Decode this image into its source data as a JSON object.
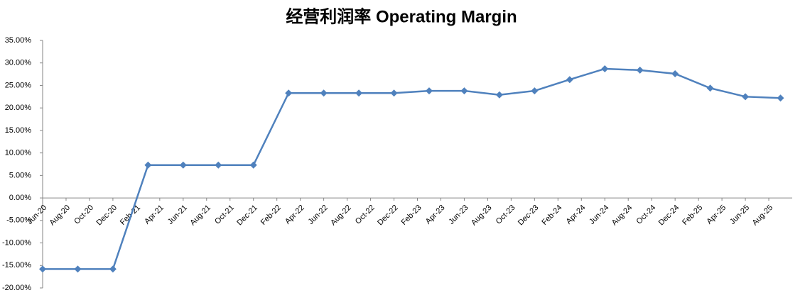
{
  "chart_data": {
    "type": "line",
    "title": "经营利润率 Operating Margin",
    "xticks": [
      "Jun-20",
      "Aug-20",
      "Oct-20",
      "Dec-20",
      "Feb-21",
      "Apr-21",
      "Jun-21",
      "Aug-21",
      "Oct-21",
      "Dec-21",
      "Feb-22",
      "Apr-22",
      "Jun-22",
      "Aug-22",
      "Oct-22",
      "Dec-22",
      "Feb-23",
      "Apr-23",
      "Jun-23",
      "Aug-23",
      "Oct-23",
      "Dec-23",
      "Feb-24",
      "Apr-24",
      "Jun-24",
      "Aug-24",
      "Oct-24",
      "Dec-24",
      "Feb-25",
      "Apr-25",
      "Jun-25",
      "Aug-25"
    ],
    "xlim": [
      "Jun-20",
      "Oct-25"
    ],
    "x": [
      "Jun-20",
      "Sep-20",
      "Dec-20",
      "Mar-21",
      "Jun-21",
      "Sep-21",
      "Dec-21",
      "Mar-22",
      "Jun-22",
      "Sep-22",
      "Dec-22",
      "Mar-23",
      "Jun-23",
      "Sep-23",
      "Dec-23",
      "Mar-24",
      "Jun-24",
      "Sep-24",
      "Dec-24",
      "Mar-25",
      "Jun-25",
      "Sep-25"
    ],
    "series": [
      {
        "color": "#4f81bd",
        "values": [
          -15.8,
          -15.8,
          -15.8,
          7.3,
          7.3,
          7.3,
          7.3,
          23.3,
          23.3,
          23.3,
          23.3,
          23.8,
          23.8,
          22.9,
          23.8,
          26.3,
          28.7,
          28.4,
          27.6,
          24.4,
          22.5,
          22.2
        ]
      }
    ],
    "ylim": [
      -20,
      35
    ],
    "yticks": [
      {
        "value": -20,
        "label": "-20.00%"
      },
      {
        "value": -15,
        "label": "-15.00%"
      },
      {
        "value": -10,
        "label": "-10.00%"
      },
      {
        "value": -5,
        "label": "-5.00%"
      },
      {
        "value": 0,
        "label": "0.00%"
      },
      {
        "value": 5,
        "label": "5.00%"
      },
      {
        "value": 10,
        "label": "10.00%"
      },
      {
        "value": 15,
        "label": "15.00%"
      },
      {
        "value": 20,
        "label": "20.00%"
      },
      {
        "value": 25,
        "label": "25.00%"
      },
      {
        "value": 30,
        "label": "30.00%"
      },
      {
        "value": 35,
        "label": "35.00%"
      }
    ],
    "grid": false
  }
}
